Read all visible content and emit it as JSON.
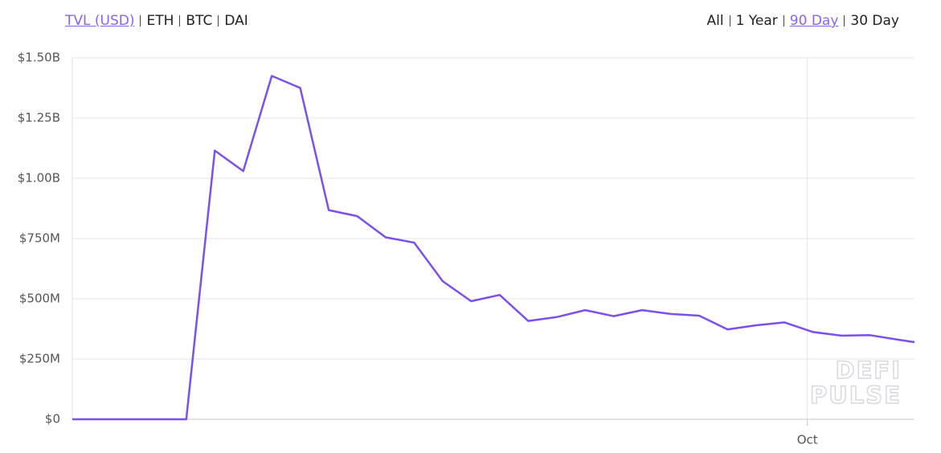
{
  "chart_data": {
    "type": "line",
    "color": "#7b4ff0",
    "x": [
      0,
      1,
      2,
      3,
      4,
      5,
      6,
      7,
      8,
      9,
      10,
      11,
      12,
      13,
      14,
      15,
      16,
      17,
      18,
      19,
      20,
      21,
      22,
      23,
      24,
      25,
      26,
      27,
      28,
      29,
      29.56
    ],
    "values": [
      0,
      0,
      0,
      0,
      0,
      1115000000,
      1030000000,
      1425000000,
      1375000000,
      868000000,
      843000000,
      755000000,
      733000000,
      573000000,
      490000000,
      516000000,
      408000000,
      424000000,
      453000000,
      428000000,
      453000000,
      437000000,
      430000000,
      373000000,
      390000000,
      402000000,
      362000000,
      347000000,
      349000000,
      330000000,
      320000000
    ],
    "xlim": [
      0,
      29.56
    ],
    "xticks": [
      {
        "value": 25.8,
        "label": "Oct"
      }
    ],
    "ylim": [
      0,
      1500000000
    ],
    "yticks": [
      {
        "value": 0,
        "label": "$0"
      },
      {
        "value": 250000000,
        "label": "$250M"
      },
      {
        "value": 500000000,
        "label": "$500M"
      },
      {
        "value": 750000000,
        "label": "$750M"
      },
      {
        "value": 1000000000,
        "label": "$1.00B"
      },
      {
        "value": 1250000000,
        "label": "$1.25B"
      },
      {
        "value": 1500000000,
        "label": "$1.50B"
      }
    ],
    "grid": true,
    "units_tabs": [
      {
        "label": "TVL (USD)",
        "active": true
      },
      {
        "label": "ETH",
        "active": false
      },
      {
        "label": "BTC",
        "active": false
      },
      {
        "label": "DAI",
        "active": false
      }
    ],
    "range_tabs": [
      {
        "label": "All",
        "active": false
      },
      {
        "label": "1 Year",
        "active": false
      },
      {
        "label": "90 Day",
        "active": true
      },
      {
        "label": "30 Day",
        "active": false
      }
    ],
    "watermark": [
      "DEFI",
      "PULSE"
    ]
  }
}
